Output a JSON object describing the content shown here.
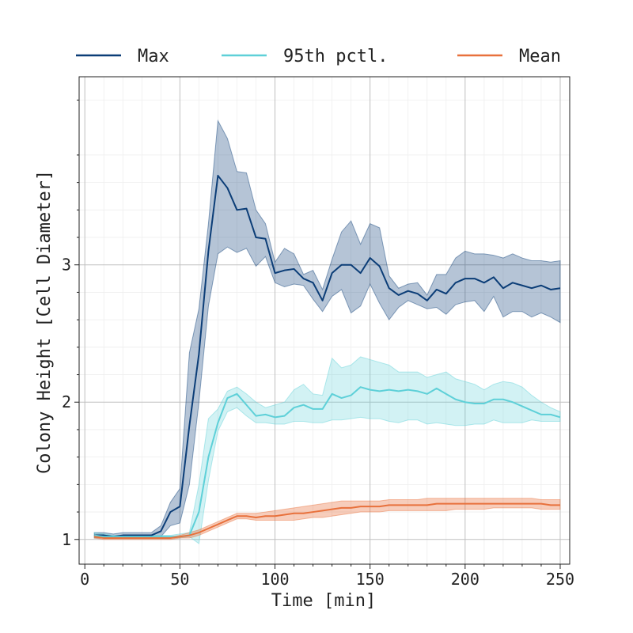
{
  "chart_data": {
    "type": "line",
    "title": "",
    "xlabel": "Time [min]",
    "ylabel": "Colony Height [Cell Diameter]",
    "xlim": [
      -3,
      255
    ],
    "ylim": [
      0.82,
      4.37
    ],
    "xticks": [
      0,
      50,
      100,
      150,
      200,
      250
    ],
    "yticks": [
      1,
      2,
      3
    ],
    "grid": true,
    "legend_position": "top",
    "x": [
      5,
      10,
      15,
      20,
      25,
      30,
      35,
      40,
      45,
      50,
      55,
      60,
      65,
      70,
      75,
      80,
      85,
      90,
      95,
      100,
      105,
      110,
      115,
      120,
      125,
      130,
      135,
      140,
      145,
      150,
      155,
      160,
      165,
      170,
      175,
      180,
      185,
      190,
      195,
      200,
      205,
      210,
      215,
      220,
      225,
      230,
      235,
      240,
      245,
      250
    ],
    "series": [
      {
        "name": "Max",
        "color": "#0b3d77",
        "values": [
          1.03,
          1.03,
          1.02,
          1.03,
          1.03,
          1.03,
          1.03,
          1.06,
          1.2,
          1.24,
          1.83,
          2.35,
          3.1,
          3.65,
          3.56,
          3.4,
          3.41,
          3.2,
          3.19,
          2.94,
          2.96,
          2.97,
          2.9,
          2.87,
          2.74,
          2.94,
          3.0,
          3.0,
          2.94,
          3.05,
          2.99,
          2.83,
          2.78,
          2.81,
          2.79,
          2.74,
          2.82,
          2.79,
          2.87,
          2.9,
          2.9,
          2.87,
          2.91,
          2.83,
          2.87,
          2.85,
          2.83,
          2.85,
          2.82,
          2.83
        ],
        "lower": [
          1.01,
          1.01,
          1.01,
          1.01,
          1.01,
          1.01,
          1.01,
          1.02,
          1.1,
          1.12,
          1.4,
          2.0,
          2.7,
          3.08,
          3.13,
          3.09,
          3.12,
          2.99,
          3.06,
          2.87,
          2.84,
          2.86,
          2.85,
          2.75,
          2.66,
          2.77,
          2.82,
          2.65,
          2.7,
          2.86,
          2.72,
          2.6,
          2.69,
          2.74,
          2.71,
          2.68,
          2.69,
          2.64,
          2.71,
          2.73,
          2.74,
          2.66,
          2.77,
          2.62,
          2.66,
          2.66,
          2.62,
          2.65,
          2.62,
          2.58
        ],
        "upper": [
          1.05,
          1.05,
          1.04,
          1.05,
          1.05,
          1.05,
          1.05,
          1.1,
          1.27,
          1.37,
          2.36,
          2.68,
          3.3,
          4.05,
          3.92,
          3.68,
          3.67,
          3.4,
          3.3,
          3.02,
          3.12,
          3.08,
          2.93,
          2.96,
          2.82,
          3.04,
          3.24,
          3.32,
          3.15,
          3.3,
          3.27,
          2.92,
          2.83,
          2.86,
          2.87,
          2.78,
          2.93,
          2.93,
          3.05,
          3.1,
          3.08,
          3.08,
          3.07,
          3.05,
          3.08,
          3.05,
          3.03,
          3.03,
          3.02,
          3.03
        ]
      },
      {
        "name": "95th pctl.",
        "color": "#5ed0d8",
        "values": [
          1.03,
          1.02,
          1.02,
          1.02,
          1.02,
          1.02,
          1.02,
          1.02,
          1.02,
          1.02,
          1.03,
          1.2,
          1.6,
          1.85,
          2.03,
          2.06,
          1.98,
          1.9,
          1.91,
          1.89,
          1.9,
          1.96,
          1.98,
          1.95,
          1.95,
          2.06,
          2.03,
          2.05,
          2.11,
          2.09,
          2.08,
          2.09,
          2.08,
          2.09,
          2.08,
          2.06,
          2.1,
          2.06,
          2.02,
          2.0,
          1.99,
          1.99,
          2.02,
          2.02,
          2.0,
          1.97,
          1.94,
          1.91,
          1.91,
          1.89
        ],
        "lower": [
          1.01,
          1.01,
          1.01,
          1.01,
          1.01,
          1.01,
          1.01,
          1.01,
          1.01,
          1.01,
          1.02,
          0.97,
          1.43,
          1.79,
          1.93,
          1.96,
          1.9,
          1.85,
          1.85,
          1.84,
          1.84,
          1.86,
          1.86,
          1.85,
          1.85,
          1.87,
          1.87,
          1.88,
          1.89,
          1.88,
          1.88,
          1.86,
          1.85,
          1.87,
          1.87,
          1.84,
          1.85,
          1.84,
          1.83,
          1.83,
          1.84,
          1.84,
          1.87,
          1.85,
          1.85,
          1.85,
          1.87,
          1.86,
          1.86,
          1.86
        ],
        "upper": [
          1.05,
          1.04,
          1.03,
          1.03,
          1.03,
          1.03,
          1.03,
          1.03,
          1.03,
          1.04,
          1.05,
          1.4,
          1.88,
          1.95,
          2.08,
          2.11,
          2.06,
          2.0,
          1.96,
          1.98,
          2.0,
          2.09,
          2.13,
          2.06,
          2.05,
          2.32,
          2.25,
          2.27,
          2.33,
          2.31,
          2.29,
          2.27,
          2.22,
          2.22,
          2.22,
          2.18,
          2.2,
          2.22,
          2.17,
          2.15,
          2.13,
          2.09,
          2.13,
          2.15,
          2.14,
          2.11,
          2.05,
          2.0,
          1.96,
          1.93
        ]
      },
      {
        "name": "Mean",
        "color": "#e8713c",
        "values": [
          1.02,
          1.01,
          1.01,
          1.01,
          1.01,
          1.01,
          1.01,
          1.01,
          1.01,
          1.02,
          1.03,
          1.05,
          1.08,
          1.11,
          1.14,
          1.17,
          1.17,
          1.16,
          1.17,
          1.17,
          1.18,
          1.19,
          1.19,
          1.2,
          1.21,
          1.22,
          1.23,
          1.23,
          1.24,
          1.24,
          1.24,
          1.25,
          1.25,
          1.25,
          1.25,
          1.25,
          1.26,
          1.26,
          1.26,
          1.26,
          1.26,
          1.26,
          1.26,
          1.26,
          1.26,
          1.26,
          1.26,
          1.26,
          1.25,
          1.25
        ],
        "lower": [
          1.01,
          1.0,
          1.0,
          1.0,
          1.0,
          1.0,
          1.0,
          1.0,
          1.0,
          1.01,
          1.01,
          1.03,
          1.06,
          1.09,
          1.12,
          1.15,
          1.15,
          1.14,
          1.14,
          1.14,
          1.14,
          1.14,
          1.15,
          1.16,
          1.16,
          1.17,
          1.18,
          1.19,
          1.2,
          1.2,
          1.2,
          1.21,
          1.21,
          1.21,
          1.21,
          1.21,
          1.21,
          1.21,
          1.22,
          1.22,
          1.22,
          1.22,
          1.23,
          1.23,
          1.23,
          1.23,
          1.23,
          1.22,
          1.22,
          1.22
        ],
        "upper": [
          1.03,
          1.02,
          1.02,
          1.02,
          1.02,
          1.02,
          1.02,
          1.02,
          1.02,
          1.03,
          1.05,
          1.07,
          1.1,
          1.13,
          1.16,
          1.19,
          1.19,
          1.19,
          1.2,
          1.21,
          1.22,
          1.23,
          1.24,
          1.25,
          1.26,
          1.27,
          1.28,
          1.28,
          1.28,
          1.28,
          1.28,
          1.29,
          1.29,
          1.29,
          1.29,
          1.3,
          1.3,
          1.3,
          1.3,
          1.3,
          1.3,
          1.3,
          1.3,
          1.3,
          1.3,
          1.3,
          1.3,
          1.29,
          1.29,
          1.29
        ]
      }
    ]
  }
}
